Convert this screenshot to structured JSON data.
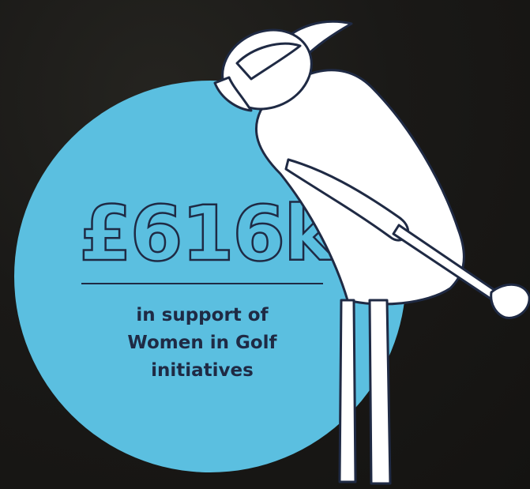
{
  "stat": {
    "amount": "£616k",
    "caption_lines": [
      "in support of",
      "Women in Golf",
      "initiatives"
    ]
  },
  "colors": {
    "background": "#1a1917",
    "circle": "#5bbfe0",
    "text": "#1f2a44",
    "figure_fill": "#ffffff",
    "figure_outline": "#1f2a44"
  },
  "icons": {
    "figure": "woman-golfer-icon"
  }
}
